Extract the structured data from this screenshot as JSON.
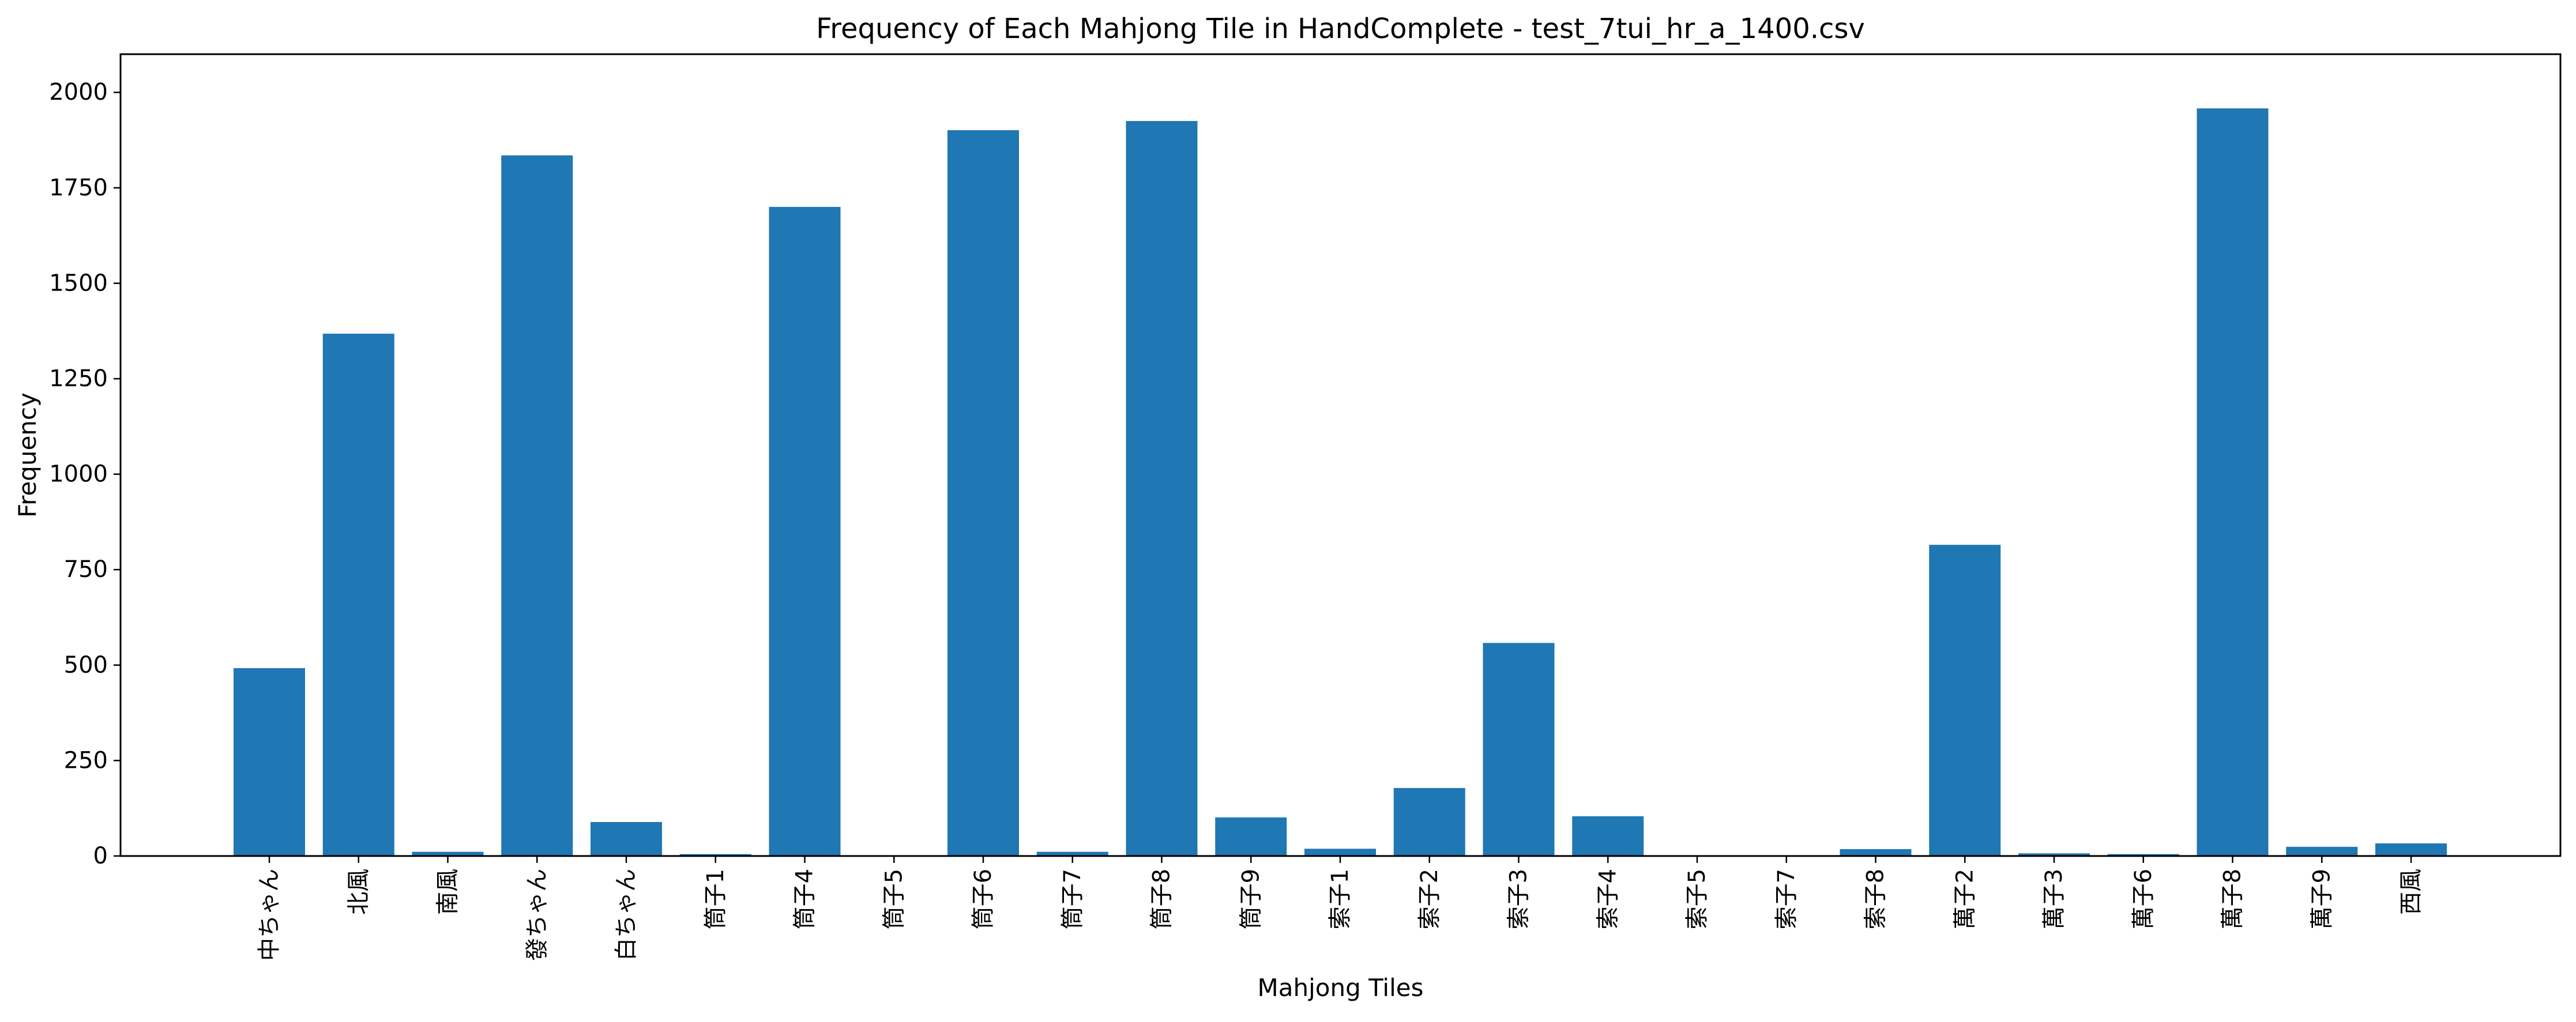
{
  "chart_data": {
    "type": "bar",
    "title": "Frequency of Each Mahjong Tile in HandComplete - test_7tui_hr_a_1400.csv",
    "xlabel": "Mahjong Tiles",
    "ylabel": "Frequency",
    "categories": [
      "中ちゃん",
      "北風",
      "南風",
      "發ちゃん",
      "白ちゃん",
      "筒子1",
      "筒子4",
      "筒子5",
      "筒子6",
      "筒子7",
      "筒子8",
      "筒子9",
      "索子1",
      "索子2",
      "索子3",
      "索子4",
      "索子5",
      "索子7",
      "索子8",
      "萬子2",
      "萬子3",
      "萬子6",
      "萬子8",
      "萬子9",
      "西風"
    ],
    "values": [
      492,
      1368,
      11,
      1835,
      89,
      5,
      1700,
      2,
      1901,
      11,
      1925,
      101,
      19,
      178,
      558,
      104,
      2,
      2,
      18,
      815,
      7,
      5,
      1958,
      24,
      33
    ],
    "ylim": [
      0,
      2100
    ],
    "yticks": [
      0,
      250,
      500,
      750,
      1000,
      1250,
      1500,
      1750,
      2000
    ],
    "ytick_labels": [
      "0",
      "250",
      "500",
      "750",
      "1000",
      "1250",
      "1500",
      "1750",
      "2000"
    ],
    "grid": false,
    "legend": "none",
    "bar_color": "#1f77b4"
  }
}
